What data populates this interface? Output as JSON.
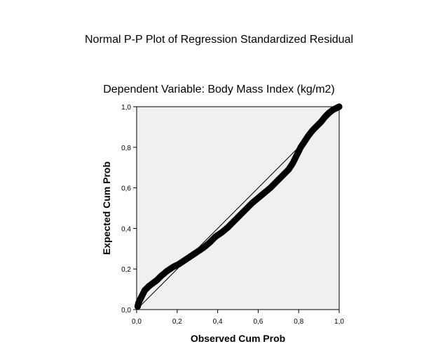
{
  "chart_data": {
    "type": "scatter",
    "title": "Normal P-P Plot of Regression Standardized Residual",
    "subtitle": "Dependent Variable: Body Mass Index (kg/m2)",
    "xlabel": "Observed Cum Prob",
    "ylabel": "Expected Cum Prob",
    "xlim": [
      0,
      1
    ],
    "ylim": [
      0,
      1
    ],
    "x_ticks": [
      0,
      0.2,
      0.4,
      0.6,
      0.8,
      1.0
    ],
    "y_ticks": [
      0,
      0.2,
      0.4,
      0.6,
      0.8,
      1.0
    ],
    "x_tick_labels": [
      "0,0",
      "0,2",
      "0,4",
      "0,6",
      "0,8",
      "1,0"
    ],
    "y_tick_labels": [
      "0,0",
      "0,2",
      "0,4",
      "0,6",
      "0,8",
      "1,0"
    ],
    "reference_line": {
      "from": [
        0,
        0
      ],
      "to": [
        1,
        1
      ]
    },
    "grid": false,
    "plot_background": "#f0f0f0",
    "marker_color": "#000000",
    "series": [
      {
        "name": "residuals",
        "points": [
          [
            0.005,
            0.015
          ],
          [
            0.01,
            0.035
          ],
          [
            0.02,
            0.055
          ],
          [
            0.03,
            0.075
          ],
          [
            0.04,
            0.095
          ],
          [
            0.06,
            0.115
          ],
          [
            0.08,
            0.13
          ],
          [
            0.1,
            0.145
          ],
          [
            0.12,
            0.165
          ],
          [
            0.15,
            0.19
          ],
          [
            0.18,
            0.21
          ],
          [
            0.21,
            0.225
          ],
          [
            0.24,
            0.245
          ],
          [
            0.27,
            0.265
          ],
          [
            0.3,
            0.285
          ],
          [
            0.33,
            0.305
          ],
          [
            0.36,
            0.33
          ],
          [
            0.39,
            0.36
          ],
          [
            0.42,
            0.38
          ],
          [
            0.45,
            0.405
          ],
          [
            0.48,
            0.435
          ],
          [
            0.51,
            0.465
          ],
          [
            0.54,
            0.495
          ],
          [
            0.57,
            0.525
          ],
          [
            0.6,
            0.55
          ],
          [
            0.63,
            0.575
          ],
          [
            0.66,
            0.6
          ],
          [
            0.69,
            0.63
          ],
          [
            0.72,
            0.66
          ],
          [
            0.75,
            0.69
          ],
          [
            0.77,
            0.72
          ],
          [
            0.79,
            0.76
          ],
          [
            0.81,
            0.8
          ],
          [
            0.83,
            0.83
          ],
          [
            0.85,
            0.86
          ],
          [
            0.87,
            0.885
          ],
          [
            0.89,
            0.905
          ],
          [
            0.91,
            0.925
          ],
          [
            0.93,
            0.95
          ],
          [
            0.95,
            0.97
          ],
          [
            0.97,
            0.985
          ],
          [
            0.99,
            0.995
          ],
          [
            1.0,
            1.0
          ]
        ]
      }
    ]
  }
}
